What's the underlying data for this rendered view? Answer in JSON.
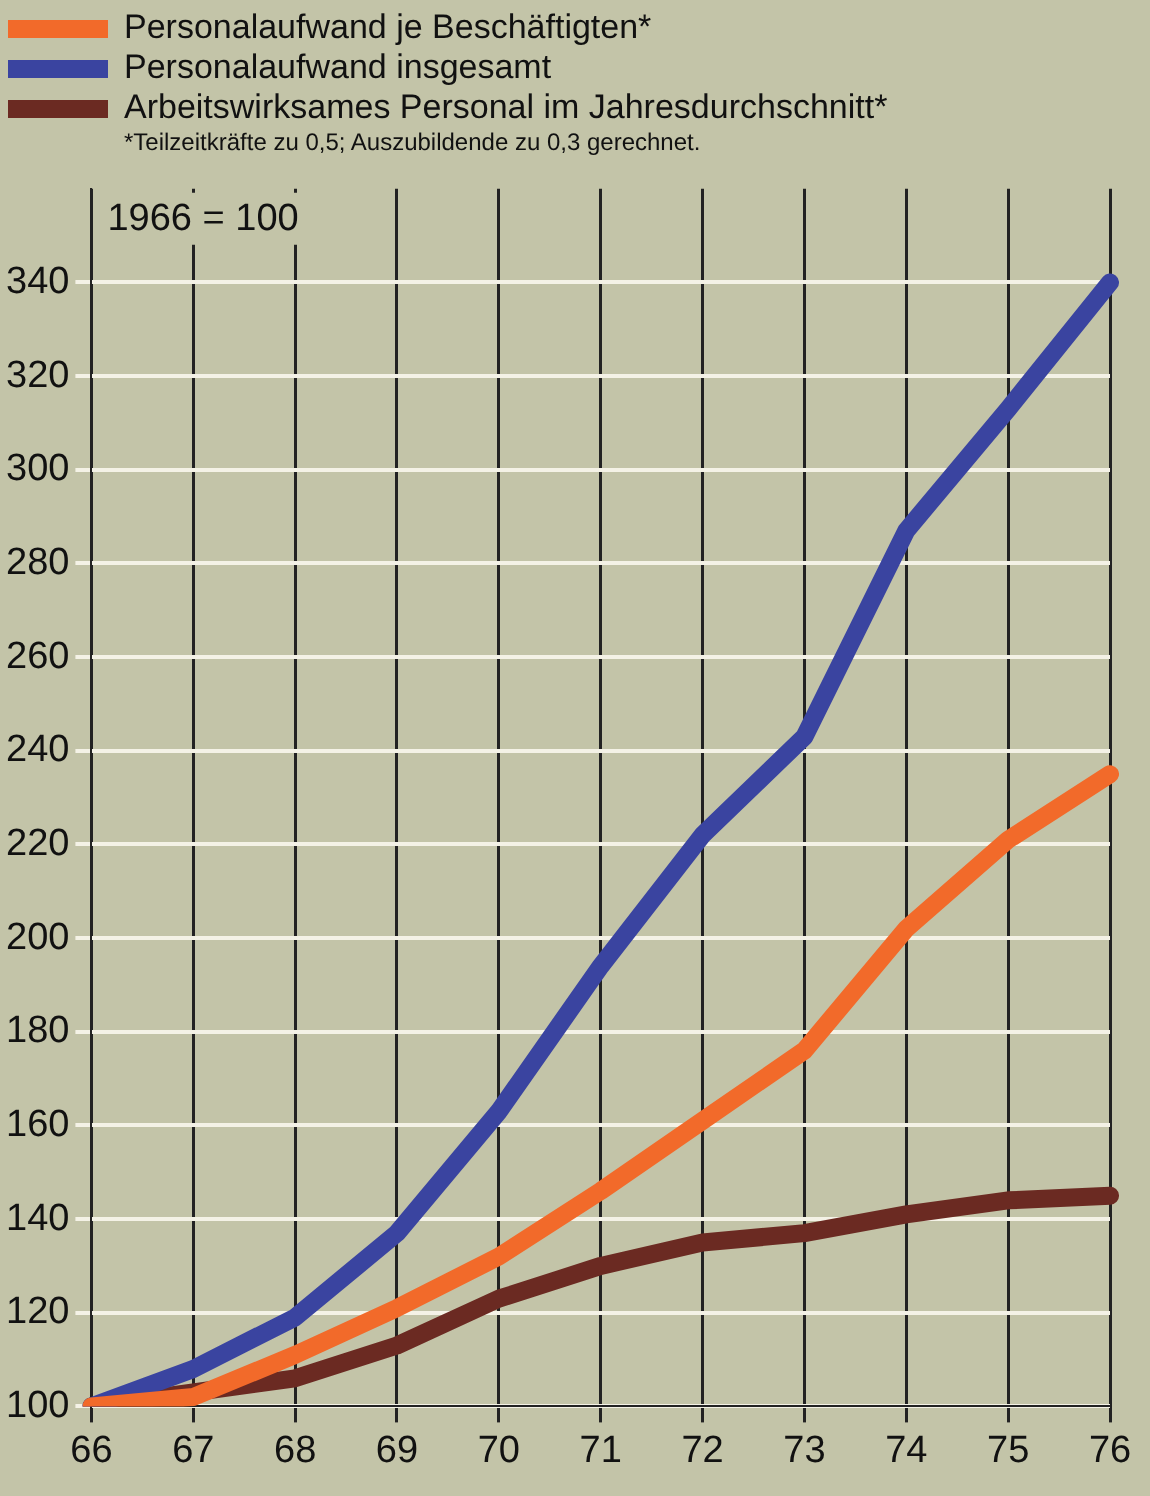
{
  "chart_data": {
    "type": "line",
    "categories": [
      "66",
      "67",
      "68",
      "69",
      "70",
      "71",
      "72",
      "73",
      "74",
      "75",
      "76"
    ],
    "series": [
      {
        "name": "Personalaufwand je Beschäftigten*",
        "color": "#f26a2a",
        "values": [
          100,
          102,
          111,
          121,
          132,
          146,
          161,
          176,
          202,
          221,
          235
        ]
      },
      {
        "name": "Personalaufwand insgesamt",
        "color": "#3a44a0",
        "values": [
          100,
          108,
          119,
          137,
          163,
          194,
          222,
          243,
          287,
          313,
          340
        ]
      },
      {
        "name": "Arbeitswirksames Personal im Jahresdurchschnitt*",
        "color": "#6b2a22",
        "values": [
          100,
          103,
          106,
          113,
          123,
          130,
          135,
          137,
          141,
          144,
          145
        ]
      }
    ],
    "ylim": [
      100,
      360
    ],
    "yticks": [
      100,
      120,
      140,
      160,
      180,
      200,
      220,
      240,
      260,
      280,
      300,
      320,
      340
    ],
    "grid": true,
    "legend": "top left",
    "marker": "none",
    "line_style": "solid",
    "annotations": [
      "1966 = 100",
      "*Teilzeitkräfte zu 0,5; Auszubildende zu 0,3 gerechnet."
    ]
  }
}
